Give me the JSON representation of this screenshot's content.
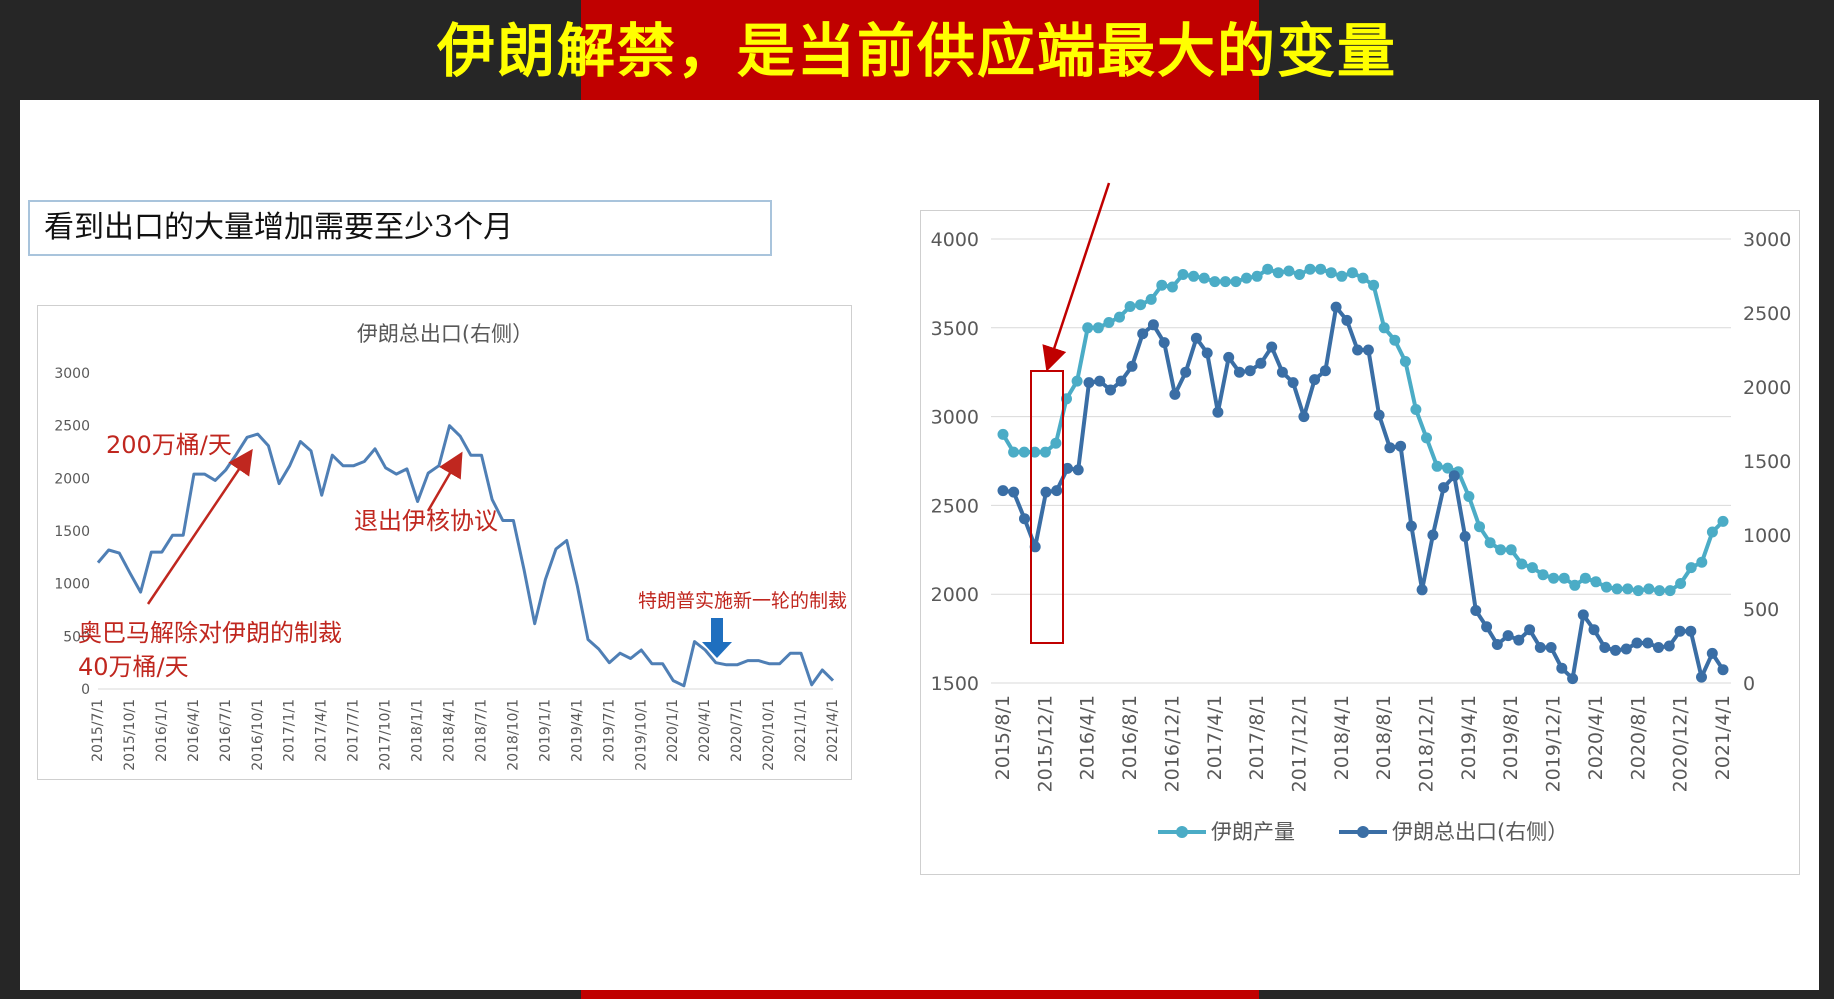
{
  "slide": {
    "title": "伊朗解禁，是当前供应端最大的变量",
    "note": "看到出口的大量增加需要至少3个月",
    "colors": {
      "background": "#262626",
      "title": "#ffff00",
      "band": "#c00000",
      "annotation": "#c0271f",
      "production_line": "#4bacc6",
      "export_line": "#3a6ea5",
      "left_line": "#4f7fb5",
      "arrow_marker": "#1f6fbf"
    }
  },
  "left_annotations": {
    "a1": "200万桶/天",
    "a2": "退出伊核协议",
    "a3": "奥巴马解除对伊朗的制裁",
    "a4": "40万桶/天",
    "a5": "特朗普实施新一轮的制裁"
  },
  "chart_data": [
    {
      "type": "line",
      "title": "伊朗总出口(右侧）",
      "ylim": [
        0,
        3000
      ],
      "y_ticks": [
        "0",
        "500",
        "1000",
        "1500",
        "2000",
        "2500",
        "3000"
      ],
      "x_ticks": [
        "2015/7/1",
        "2015/10/1",
        "2016/1/1",
        "2016/4/1",
        "2016/7/1",
        "2016/10/1",
        "2017/1/1",
        "2017/4/1",
        "2017/7/1",
        "2017/10/1",
        "2018/1/1",
        "2018/4/1",
        "2018/7/1",
        "2018/10/1",
        "2019/1/1",
        "2019/4/1",
        "2019/7/1",
        "2019/10/1",
        "2020/1/1",
        "2020/4/1",
        "2020/7/1",
        "2020/10/1",
        "2021/1/1",
        "2021/4/1"
      ],
      "series": [
        {
          "values": [
            1200,
            1320,
            1290,
            1100,
            920,
            1300,
            1300,
            1460,
            1460,
            2040,
            2040,
            1980,
            2080,
            2230,
            2390,
            2420,
            2310,
            1950,
            2120,
            2350,
            2260,
            1840,
            2220,
            2120,
            2120,
            2160,
            2280,
            2100,
            2040,
            2090,
            1780,
            2050,
            2120,
            2500,
            2400,
            2220,
            2220,
            1800,
            1600,
            1600,
            1130,
            620,
            1040,
            1330,
            1410,
            980,
            470,
            380,
            250,
            340,
            290,
            370,
            240,
            240,
            80,
            30,
            450,
            370,
            250,
            230,
            230,
            270,
            270,
            240,
            240,
            340,
            340,
            40,
            180,
            80
          ]
        }
      ]
    },
    {
      "type": "line",
      "ylim_left": [
        1500,
        4000
      ],
      "ylim_right": [
        0,
        3000
      ],
      "y_ticks_left": [
        "1500",
        "2000",
        "2500",
        "3000",
        "3500",
        "4000"
      ],
      "y_ticks_right": [
        "0",
        "500",
        "1000",
        "1500",
        "2000",
        "2500",
        "3000"
      ],
      "x_ticks": [
        "2015/8/1",
        "2015/12/1",
        "2016/4/1",
        "2016/8/1",
        "2016/12/1",
        "2017/4/1",
        "2017/8/1",
        "2017/12/1",
        "2018/4/1",
        "2018/8/1",
        "2018/12/1",
        "2019/4/1",
        "2019/8/1",
        "2019/12/1",
        "2020/4/1",
        "2020/8/1",
        "2020/12/1",
        "2021/4/1"
      ],
      "series": [
        {
          "name": "伊朗产量",
          "axis": "left",
          "values": [
            2900,
            2800,
            2800,
            2800,
            2800,
            2850,
            3100,
            3200,
            3500,
            3500,
            3530,
            3560,
            3620,
            3630,
            3660,
            3740,
            3730,
            3800,
            3790,
            3780,
            3760,
            3760,
            3760,
            3780,
            3790,
            3830,
            3810,
            3820,
            3800,
            3830,
            3830,
            3810,
            3790,
            3810,
            3780,
            3740,
            3500,
            3430,
            3310,
            3040,
            2880,
            2720,
            2710,
            2690,
            2550,
            2380,
            2290,
            2250,
            2250,
            2170,
            2150,
            2110,
            2090,
            2090,
            2050,
            2090,
            2070,
            2040,
            2030,
            2030,
            2020,
            2030,
            2020,
            2020,
            2060,
            2150,
            2180,
            2350,
            2410
          ]
        },
        {
          "name": "伊朗总出口(右侧）",
          "axis": "right",
          "values": [
            1300,
            1290,
            1110,
            920,
            1290,
            1300,
            1450,
            1440,
            2030,
            2040,
            1980,
            2040,
            2140,
            2360,
            2420,
            2300,
            1950,
            2100,
            2330,
            2230,
            1830,
            2200,
            2100,
            2110,
            2160,
            2270,
            2100,
            2030,
            1800,
            2050,
            2110,
            2540,
            2450,
            2250,
            2250,
            1810,
            1590,
            1600,
            1060,
            630,
            1000,
            1320,
            1400,
            990,
            490,
            380,
            260,
            320,
            290,
            360,
            240,
            240,
            100,
            30,
            460,
            360,
            240,
            220,
            230,
            270,
            270,
            240,
            250,
            350,
            350,
            40,
            200,
            90
          ]
        }
      ]
    }
  ],
  "right_legend": {
    "production": "伊朗产量",
    "exports": "伊朗总出口(右侧）"
  }
}
